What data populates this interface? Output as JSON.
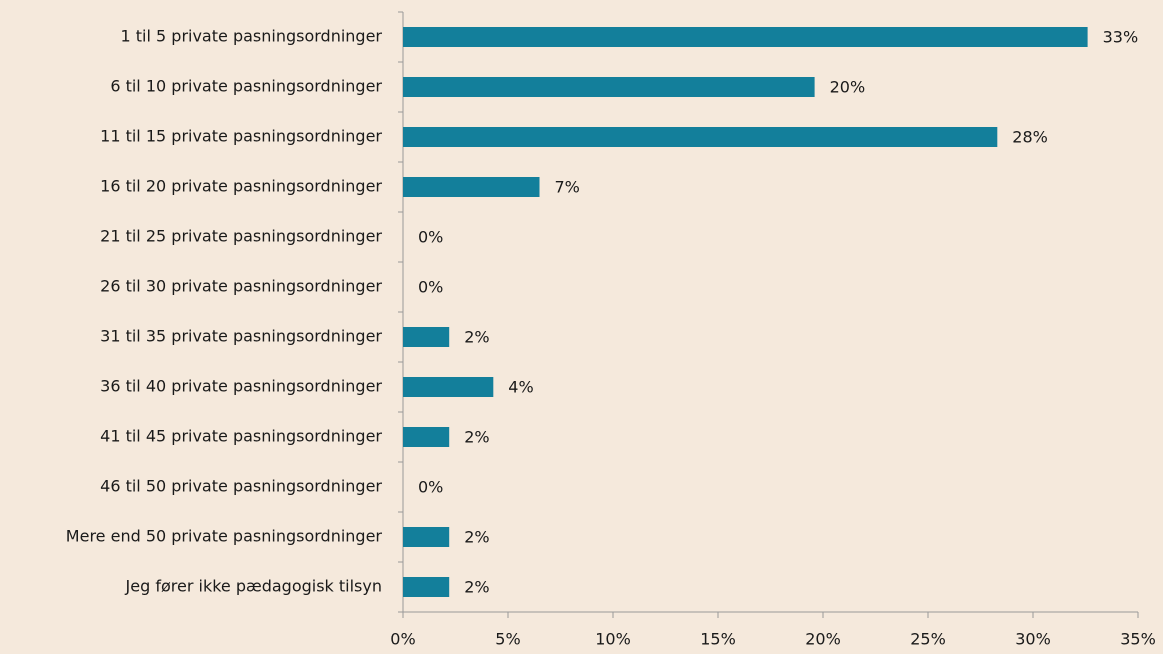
{
  "chart_data": {
    "type": "barh",
    "categories": [
      "1 til 5 private pasningsordninger",
      "6 til 10 private pasningsordninger",
      "11 til 15 private pasningsordninger",
      "16 til 20 private pasningsordninger",
      "21 til 25 private pasningsordninger",
      "26 til 30 private pasningsordninger",
      "31 til 35 private pasningsordninger",
      "36 til 40 private pasningsordninger",
      "41 til 45 private pasningsordninger",
      "46 til 50 private pasningsordninger",
      "Mere end 50 private pasningsordninger",
      "Jeg fører ikke pædagogisk tilsyn"
    ],
    "values": [
      32.6,
      19.6,
      28.3,
      6.5,
      0,
      0,
      2.2,
      4.3,
      2.2,
      0,
      2.2,
      2.2
    ],
    "value_labels": [
      "33%",
      "20%",
      "28%",
      "7%",
      "0%",
      "0%",
      "2%",
      "4%",
      "2%",
      "0%",
      "2%",
      "2%"
    ],
    "color": "#137f9b",
    "xlim": [
      0,
      35
    ],
    "xticks": [
      {
        "value": 0,
        "label": "0%"
      },
      {
        "value": 5,
        "label": "5%"
      },
      {
        "value": 10,
        "label": "10%"
      },
      {
        "value": 15,
        "label": "15%"
      },
      {
        "value": 20,
        "label": "20%"
      },
      {
        "value": 25,
        "label": "25%"
      },
      {
        "value": 30,
        "label": "30%"
      },
      {
        "value": 35,
        "label": "35%"
      }
    ]
  }
}
